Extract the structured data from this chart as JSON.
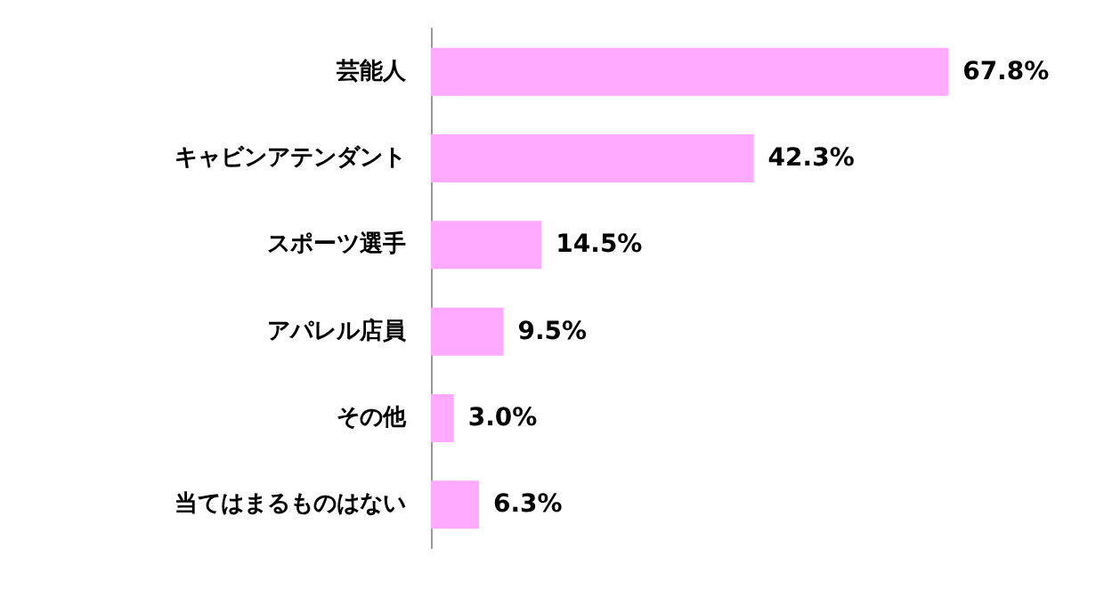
{
  "chart_data": {
    "type": "bar",
    "orientation": "horizontal",
    "categories": [
      "芸能人",
      "キャビンアテンダント",
      "スポーツ選手",
      "アパレル店員",
      "その他",
      "当てはまるものはない"
    ],
    "values": [
      67.8,
      42.3,
      14.5,
      9.5,
      3.0,
      6.3
    ],
    "value_labels": [
      "67.8%",
      "42.3%",
      "14.5%",
      "9.5%",
      "3.0%",
      "6.3%"
    ],
    "color": "#ffaaff",
    "tick_labels": "y"
  }
}
